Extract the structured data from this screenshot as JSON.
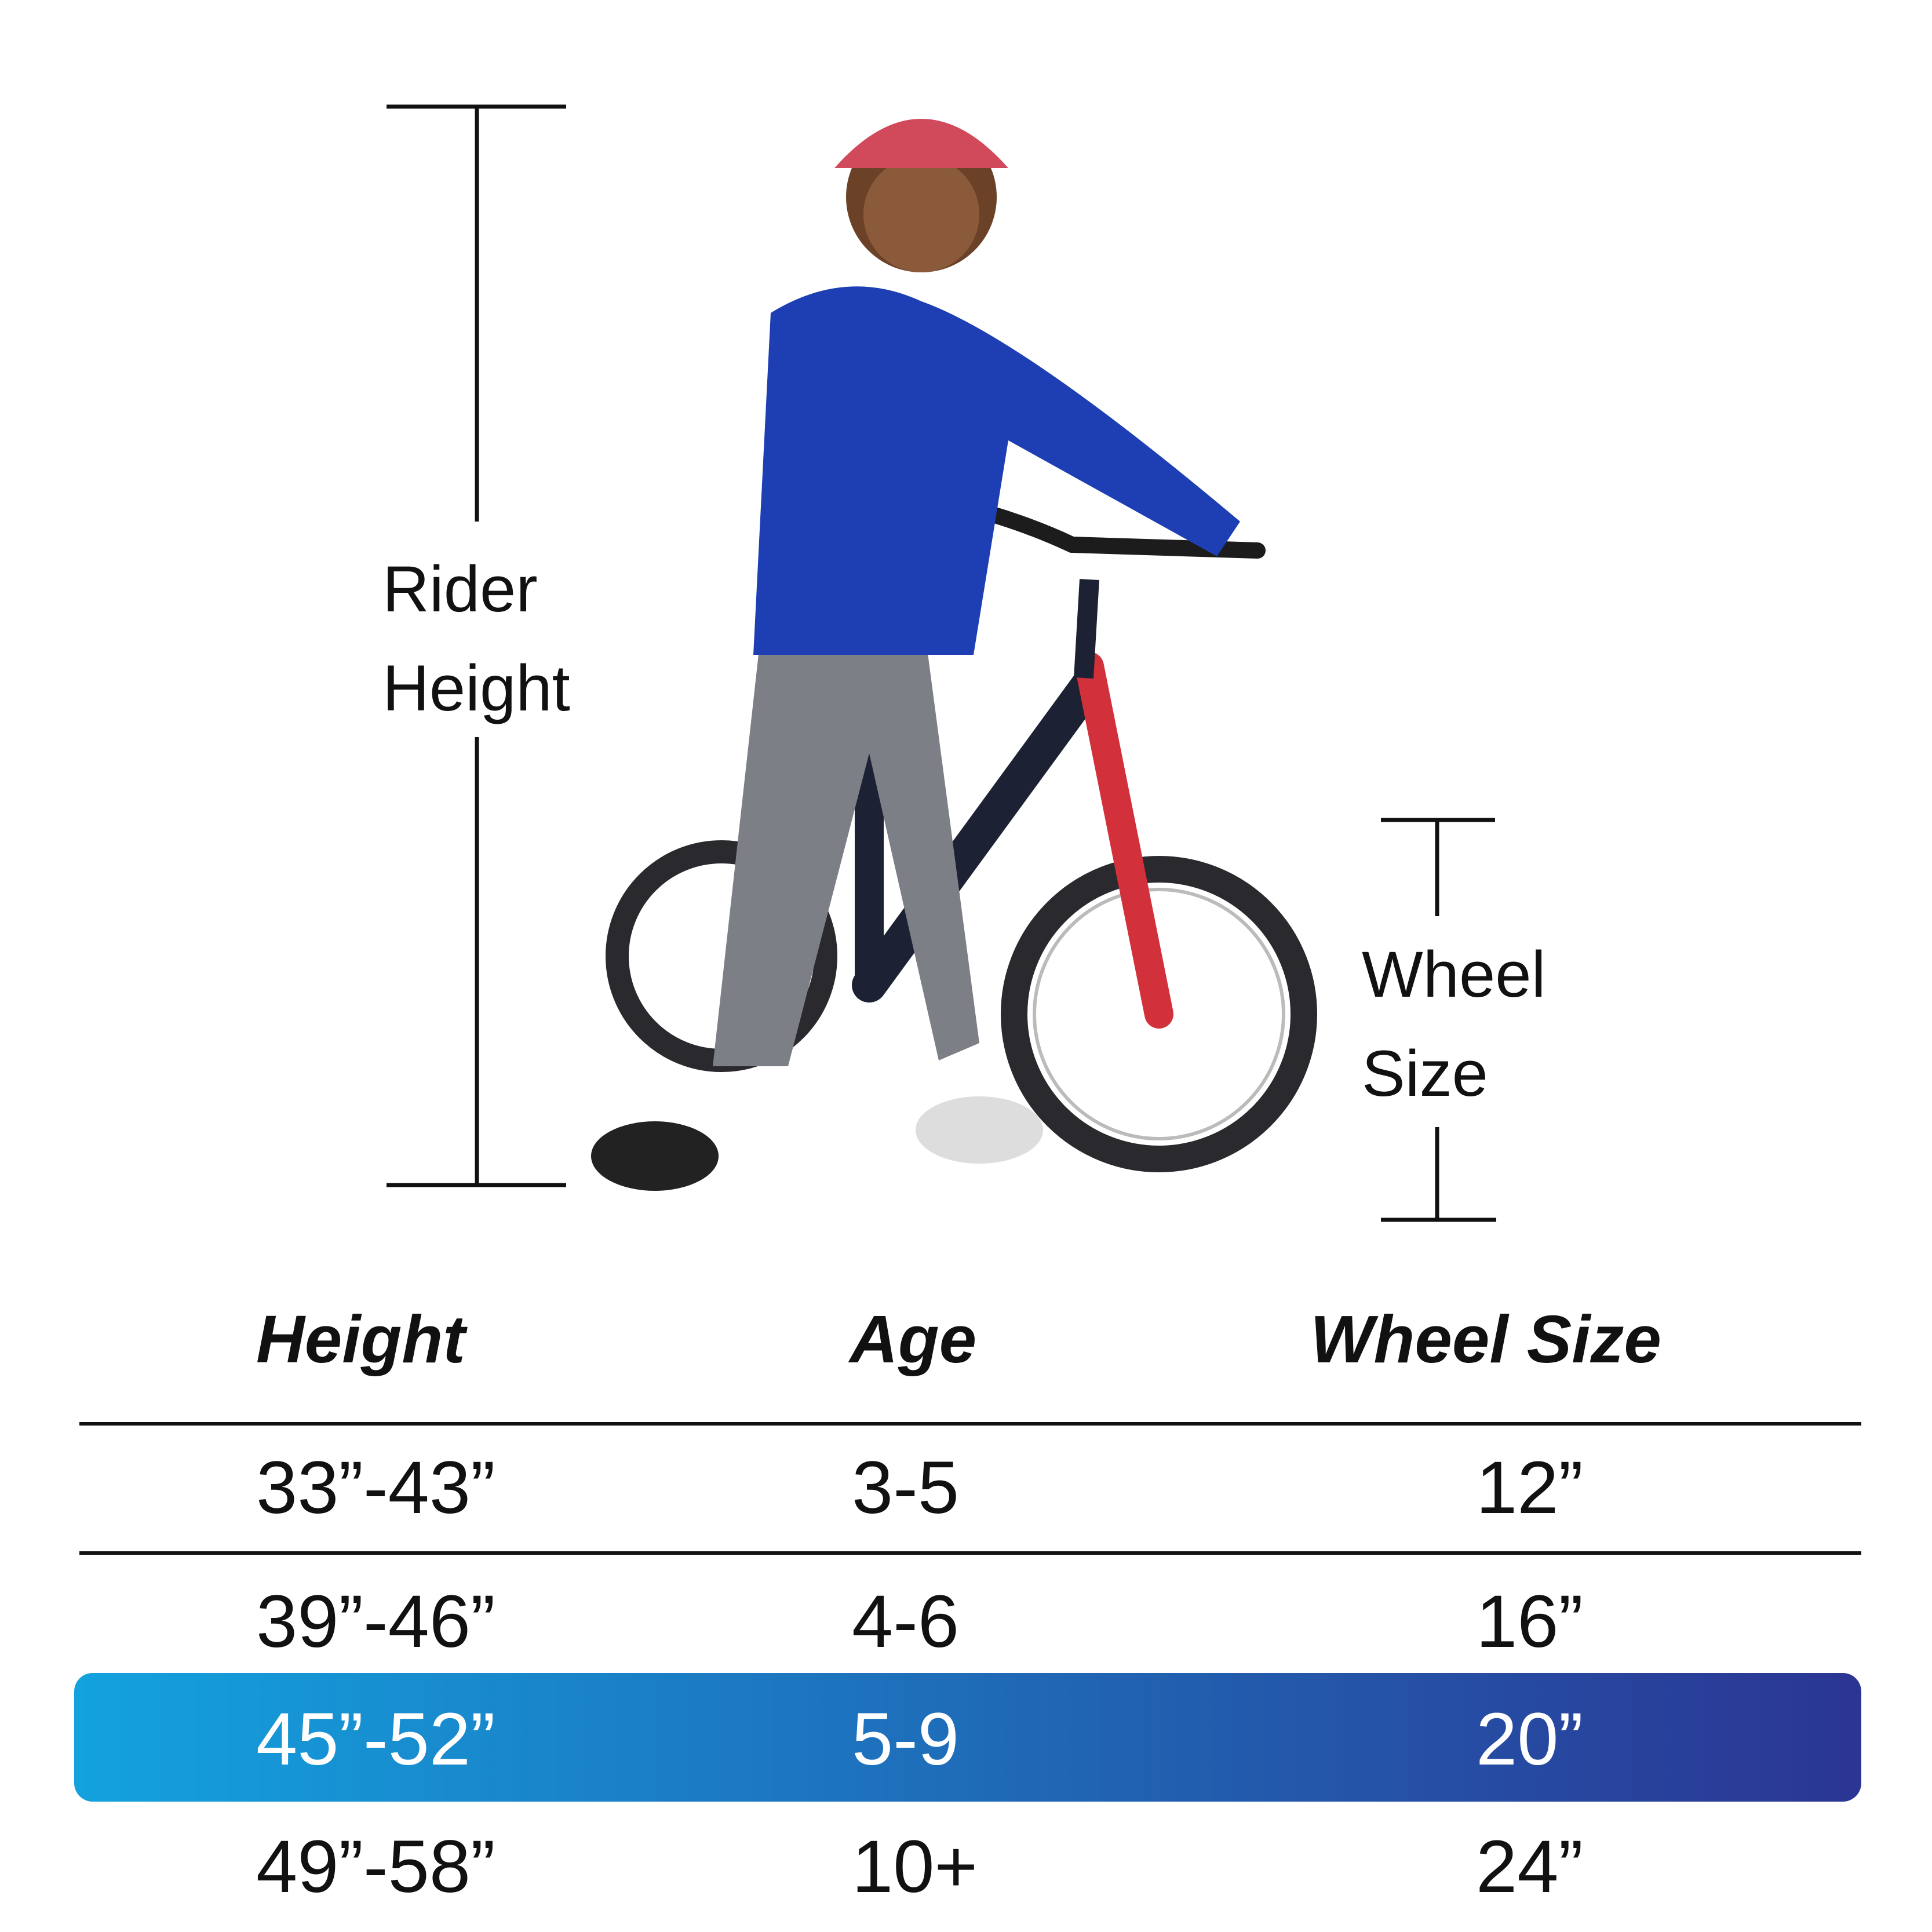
{
  "labels": {
    "rider_height": [
      "Rider",
      "Height"
    ],
    "wheel_size": [
      "Wheel",
      "Size"
    ]
  },
  "table": {
    "header": [
      "Height",
      "Age",
      "Wheel Size"
    ],
    "rows": [
      [
        "33”-43”",
        "3-5",
        "12”"
      ],
      [
        "39”-46”",
        "4-6",
        "16”"
      ],
      [
        "45”-52”",
        "5-9",
        "20”"
      ],
      [
        "49”-58”",
        "10+",
        "24”"
      ]
    ],
    "highlight_row": 2
  }
}
